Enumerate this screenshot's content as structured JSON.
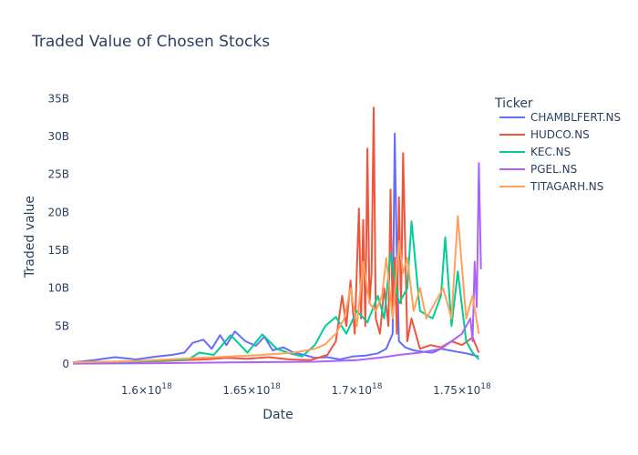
{
  "chart_data": {
    "type": "line",
    "title": "Traded Value of Chosen Stocks",
    "xlabel": "Date",
    "ylabel": "Traded value",
    "xlim": [
      1.565e+18,
      1.76e+18
    ],
    "ylim": [
      -1200000000.0,
      36000000000.0
    ],
    "grid": false,
    "legend_position": "right",
    "legend_title": "Ticker",
    "x_ticks": [
      {
        "value": 1.6e+18,
        "base": "1.6×10",
        "exp": "18"
      },
      {
        "value": 1.65e+18,
        "base": "1.65×10",
        "exp": "18"
      },
      {
        "value": 1.7e+18,
        "base": "1.7×10",
        "exp": "18"
      },
      {
        "value": 1.75e+18,
        "base": "1.75×10",
        "exp": "18"
      }
    ],
    "y_ticks": [
      {
        "value": 0,
        "label": "0"
      },
      {
        "value": 5000000000.0,
        "label": "5B"
      },
      {
        "value": 10000000000.0,
        "label": "10B"
      },
      {
        "value": 15000000000.0,
        "label": "15B"
      },
      {
        "value": 20000000000.0,
        "label": "20B"
      },
      {
        "value": 25000000000.0,
        "label": "25B"
      },
      {
        "value": 30000000000.0,
        "label": "30B"
      },
      {
        "value": 35000000000.0,
        "label": "35B"
      }
    ],
    "series": [
      {
        "name": "CHAMBLFERT.NS",
        "color": "#636efa",
        "x": [
          1.565e+18,
          1.575e+18,
          1.585e+18,
          1.595e+18,
          1.605e+18,
          1.612e+18,
          1.618e+18,
          1.622e+18,
          1.627e+18,
          1.631e+18,
          1.635e+18,
          1.638e+18,
          1.642e+18,
          1.647e+18,
          1.652e+18,
          1.656e+18,
          1.66e+18,
          1.665e+18,
          1.67e+18,
          1.675e+18,
          1.68e+18,
          1.686e+18,
          1.692e+18,
          1.698e+18,
          1.704e+18,
          1.71e+18,
          1.714e+18,
          1.717e+18,
          1.718e+18,
          1.719e+18,
          1.72e+18,
          1.723e+18,
          1.727e+18,
          1.732e+18,
          1.736e+18,
          1.74e+18,
          1.744e+18,
          1.748e+18,
          1.752e+18,
          1.755e+18,
          1.758e+18
        ],
        "values": [
          200000000.0,
          500000000.0,
          900000000.0,
          600000000.0,
          1000000000.0,
          1200000000.0,
          1500000000.0,
          2800000000.0,
          3200000000.0,
          2000000000.0,
          3800000000.0,
          2500000000.0,
          4300000000.0,
          3000000000.0,
          2400000000.0,
          3600000000.0,
          1800000000.0,
          2200000000.0,
          1500000000.0,
          1200000000.0,
          800000000.0,
          900000000.0,
          600000000.0,
          1000000000.0,
          1100000000.0,
          1400000000.0,
          2000000000.0,
          4000000000.0,
          30400000000.0,
          14000000000.0,
          3000000000.0,
          2200000000.0,
          1800000000.0,
          1600000000.0,
          1500000000.0,
          2000000000.0,
          1800000000.0,
          1600000000.0,
          1400000000.0,
          1200000000.0,
          1000000000.0
        ]
      },
      {
        "name": "HUDCO.NS",
        "color": "#ef553b",
        "x": [
          1.565e+18,
          1.58e+18,
          1.595e+18,
          1.608e+18,
          1.618e+18,
          1.628e+18,
          1.638e+18,
          1.648e+18,
          1.658e+18,
          1.668e+18,
          1.678e+18,
          1.686e+18,
          1.69e+18,
          1.693e+18,
          1.695e+18,
          1.697e+18,
          1.699e+18,
          1.701e+18,
          1.702e+18,
          1.703e+18,
          1.704e+18,
          1.705e+18,
          1.706e+18,
          1.707e+18,
          1.708e+18,
          1.709e+18,
          1.711e+18,
          1.713e+18,
          1.715e+18,
          1.716e+18,
          1.717e+18,
          1.718e+18,
          1.719e+18,
          1.72e+18,
          1.721e+18,
          1.722e+18,
          1.724e+18,
          1.726e+18,
          1.73e+18,
          1.735e+18,
          1.74e+18,
          1.745e+18,
          1.75e+18,
          1.755e+18,
          1.758e+18
        ],
        "values": [
          100000000.0,
          200000000.0,
          300000000.0,
          400000000.0,
          500000000.0,
          600000000.0,
          800000000.0,
          700000000.0,
          900000000.0,
          600000000.0,
          500000000.0,
          1200000000.0,
          3000000000.0,
          9000000000.0,
          5000000000.0,
          11000000000.0,
          4000000000.0,
          20500000000.0,
          6000000000.0,
          19000000000.0,
          5000000000.0,
          28400000000.0,
          8000000000.0,
          12000000000.0,
          33800000000.0,
          6000000000.0,
          4000000000.0,
          10000000000.0,
          5000000000.0,
          23000000000.0,
          6000000000.0,
          14000000000.0,
          4000000000.0,
          22000000000.0,
          8000000000.0,
          27800000000.0,
          3000000000.0,
          6000000000.0,
          2000000000.0,
          2500000000.0,
          2200000000.0,
          3000000000.0,
          2500000000.0,
          3500000000.0,
          1500000000.0
        ]
      },
      {
        "name": "KEC.NS",
        "color": "#00cc96",
        "x": [
          1.565e+18,
          1.58e+18,
          1.595e+18,
          1.61e+18,
          1.62e+18,
          1.625e+18,
          1.632e+18,
          1.64e+18,
          1.648e+18,
          1.655e+18,
          1.662e+18,
          1.668e+18,
          1.674e+18,
          1.68e+18,
          1.685e+18,
          1.69e+18,
          1.695e+18,
          1.7e+18,
          1.705e+18,
          1.71e+18,
          1.713e+18,
          1.716e+18,
          1.72e+18,
          1.724e+18,
          1.726e+18,
          1.73e+18,
          1.736e+18,
          1.74e+18,
          1.742e+18,
          1.745e+18,
          1.748e+18,
          1.752e+18,
          1.755e+18,
          1.758e+18
        ],
        "values": [
          200000000.0,
          300000000.0,
          300000000.0,
          500000000.0,
          600000000.0,
          1500000000.0,
          1200000000.0,
          3800000000.0,
          1500000000.0,
          3900000000.0,
          2000000000.0,
          1400000000.0,
          1000000000.0,
          2500000000.0,
          5000000000.0,
          6200000000.0,
          4000000000.0,
          7000000000.0,
          5500000000.0,
          9000000000.0,
          6000000000.0,
          14600000000.0,
          8000000000.0,
          10000000000.0,
          18800000000.0,
          7000000000.0,
          6000000000.0,
          9000000000.0,
          16700000000.0,
          5000000000.0,
          12200000000.0,
          3000000000.0,
          1500000000.0,
          600000000.0
        ]
      },
      {
        "name": "PGEL.NS",
        "color": "#ab63fa",
        "x": [
          1.565e+18,
          1.6e+18,
          1.64e+18,
          1.68e+18,
          1.7e+18,
          1.71e+18,
          1.715e+18,
          1.72e+18,
          1.73e+18,
          1.74e+18,
          1.745e+18,
          1.75e+18,
          1.752e+18,
          1.754e+18,
          1.755e+18,
          1.756e+18,
          1.757e+18,
          1.758e+18,
          1.759e+18
        ],
        "values": [
          50000000.0,
          100000000.0,
          200000000.0,
          300000000.0,
          500000000.0,
          800000000.0,
          1000000000.0,
          1200000000.0,
          1500000000.0,
          2000000000.0,
          3000000000.0,
          4000000000.0,
          5000000000.0,
          6000000000.0,
          3000000000.0,
          13500000000.0,
          7500000000.0,
          26500000000.0,
          12500000000.0
        ]
      },
      {
        "name": "TITAGARH.NS",
        "color": "#ffa15a",
        "x": [
          1.565e+18,
          1.58e+18,
          1.595e+18,
          1.61e+18,
          1.625e+18,
          1.64e+18,
          1.655e+18,
          1.67e+18,
          1.68e+18,
          1.685e+18,
          1.69e+18,
          1.694e+18,
          1.697e+18,
          1.7e+18,
          1.703e+18,
          1.706e+18,
          1.709e+18,
          1.712e+18,
          1.714e+18,
          1.717e+18,
          1.72e+18,
          1.722e+18,
          1.724e+18,
          1.727e+18,
          1.73e+18,
          1.733e+18,
          1.737e+18,
          1.741e+18,
          1.745e+18,
          1.748e+18,
          1.752e+18,
          1.755e+18,
          1.758e+18
        ],
        "values": [
          200000000.0,
          300000000.0,
          400000000.0,
          600000000.0,
          800000000.0,
          1000000000.0,
          1200000000.0,
          1500000000.0,
          2000000000.0,
          2600000000.0,
          4000000000.0,
          6000000000.0,
          10000000000.0,
          5000000000.0,
          13500000000.0,
          8000000000.0,
          7000000000.0,
          9000000000.0,
          14000000000.0,
          6000000000.0,
          16200000000.0,
          12000000000.0,
          14000000000.0,
          7000000000.0,
          10000000000.0,
          6000000000.0,
          8000000000.0,
          10000000000.0,
          6000000000.0,
          19500000000.0,
          6000000000.0,
          9000000000.0,
          4000000000.0
        ]
      }
    ]
  }
}
